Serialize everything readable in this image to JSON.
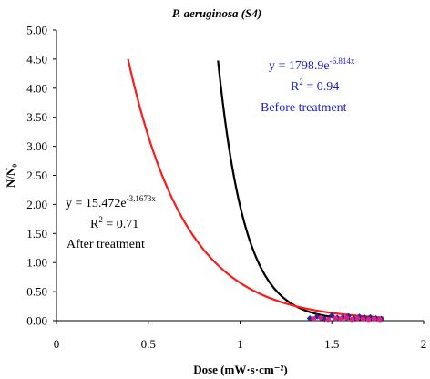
{
  "chart_data": {
    "type": "scatter",
    "title": "P. aeruginosa (S4)",
    "xlabel": "Dose (mW·s·cm⁻²)",
    "ylabel": "N/N₀",
    "xlim": [
      0,
      2
    ],
    "ylim": [
      0,
      5
    ],
    "x_ticks": [
      "0",
      "0.5",
      "1",
      "1.5",
      "2"
    ],
    "y_ticks": [
      "0.00",
      "0.50",
      "1.00",
      "1.50",
      "2.00",
      "2.50",
      "3.00",
      "3.50",
      "4.00",
      "4.50",
      "5.00"
    ],
    "grid": false,
    "series": [
      {
        "name": "Before treatment",
        "type": "line",
        "color": "#000000",
        "fit": {
          "a": 1798.9,
          "b": -6.814,
          "x_range": [
            0.88,
            1.78
          ]
        },
        "equation_base": "y = 1798.9e",
        "equation_exp": "-6.814x",
        "r2_base": "R",
        "r2_exp": "2",
        "r2_value": " = 0.94",
        "label": "Before treatment",
        "label_color": "#1a1adb"
      },
      {
        "name": "After treatment",
        "type": "line",
        "color": "#ff1a1a",
        "fit": {
          "a": 15.472,
          "b": -3.1673,
          "x_range": [
            0.39,
            1.78
          ]
        },
        "equation_base": "y = 15.472e",
        "equation_exp": "-3.1673x",
        "r2_base": "R",
        "r2_exp": "2",
        "r2_value": " = 0.71",
        "label": "After treatment",
        "label_color": "#000000"
      }
    ],
    "points_before": {
      "color": "#2a2a8c",
      "marker": "diamond",
      "x": [
        1.38,
        1.42,
        1.46,
        1.5,
        1.53,
        1.56,
        1.59,
        1.62,
        1.65,
        1.68,
        1.71,
        1.74,
        1.77
      ],
      "y": [
        0.04,
        0.07,
        0.03,
        0.09,
        0.05,
        0.06,
        0.08,
        0.04,
        0.07,
        0.05,
        0.06,
        0.04,
        0.03
      ]
    },
    "points_after": {
      "color": "#e0208a",
      "marker": "circle",
      "x": [
        1.4,
        1.44,
        1.48,
        1.52,
        1.55,
        1.58,
        1.61,
        1.64,
        1.67,
        1.7,
        1.73,
        1.76
      ],
      "y": [
        0.03,
        0.05,
        0.02,
        0.04,
        0.03,
        0.05,
        0.02,
        0.04,
        0.03,
        0.02,
        0.03,
        0.02
      ]
    }
  }
}
